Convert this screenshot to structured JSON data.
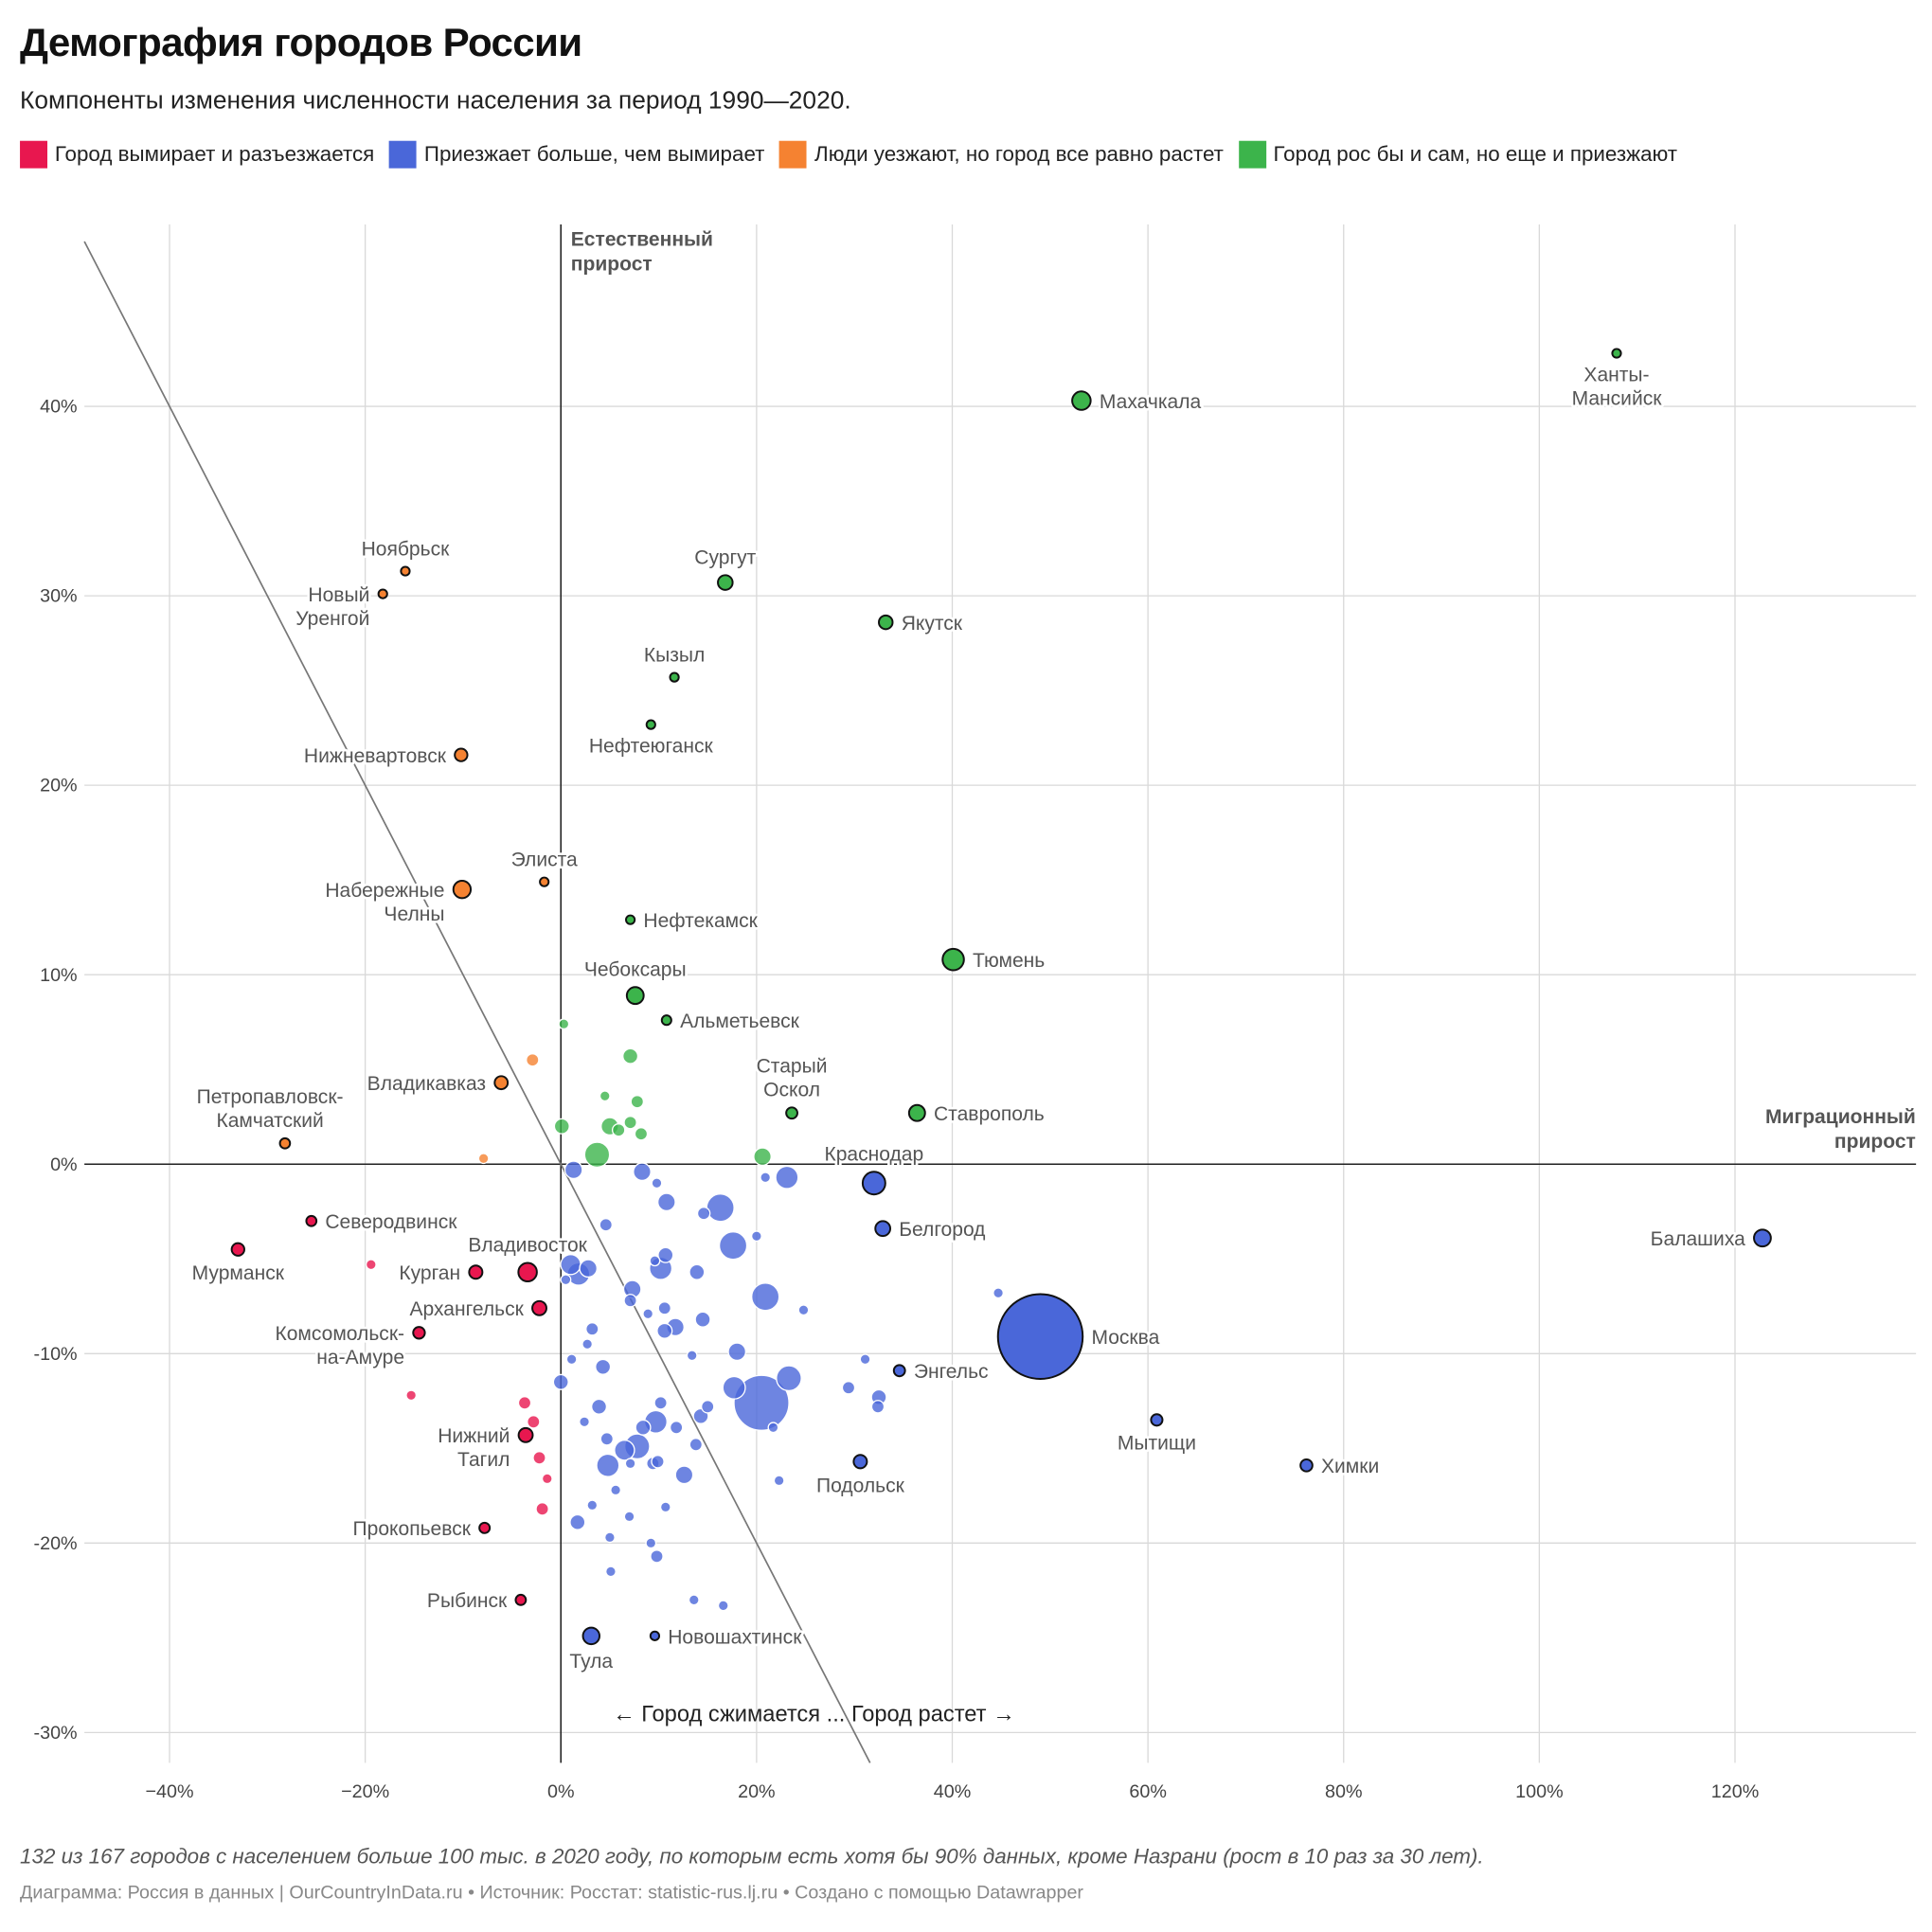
{
  "title": "Демография городов России",
  "subtitle": "Компоненты изменения численности населения за период 1990—2020.",
  "legend": [
    {
      "label": "Город вымирает и разъезжается",
      "color": "#e8174f"
    },
    {
      "label": "Приезжает больше, чем вымирает",
      "color": "#4a67d9"
    },
    {
      "label": "Люди уезжают, но город все равно растет",
      "color": "#f58231"
    },
    {
      "label": "Город рос бы и сам, но еще и приезжают",
      "color": "#3cb44b"
    }
  ],
  "note": "132 из 167 городов с населением больше 100 тыс. в 2020 году, по которым есть хотя бы 90% данных, кроме Назрани (рост в 10 раз за 30 лет).",
  "credits": "Диаграмма: Россия в данных | OurCountryInData.ru • Источник: Росстат: statistic-rus.lj.ru • Создано с помощью Datawrapper",
  "chart_data": {
    "type": "scatter",
    "xlabel": "Миграционный прирост",
    "ylabel": "Естественный прирост",
    "direction_annotation": "← Город сжимается ... Город растет →",
    "xlim": [
      -48.7,
      138.5
    ],
    "ylim": [
      -31.6,
      49.6
    ],
    "x_ticks": [
      -40,
      -20,
      0,
      20,
      40,
      60,
      80,
      100,
      120
    ],
    "x_tick_labels": [
      "−40%",
      "−20%",
      "0%",
      "20%",
      "40%",
      "60%",
      "80%",
      "100%",
      "120%"
    ],
    "y_ticks": [
      -30,
      -20,
      -10,
      0,
      10,
      20,
      30,
      40
    ],
    "y_tick_labels": [
      "-30%",
      "-20%",
      "-10%",
      "0%",
      "10%",
      "20%",
      "30%",
      "40%"
    ],
    "grid": true,
    "reference_line": "x + y = 0",
    "size_encoding": "population (thousands, estimated)",
    "categories": [
      "shrinking",
      "migration_growth",
      "natural_growth_only",
      "both_growth"
    ],
    "labeled_points": [
      {
        "name": "Ханты-\nМансийск",
        "x": 107.9,
        "y": 42.8,
        "pop": 100,
        "cat": 3,
        "label_pos": "below"
      },
      {
        "name": "Махачкала",
        "x": 53.2,
        "y": 40.3,
        "pop": 600,
        "cat": 3,
        "label_pos": "right"
      },
      {
        "name": "Сургут",
        "x": 16.8,
        "y": 30.7,
        "pop": 380,
        "cat": 3,
        "label_pos": "above"
      },
      {
        "name": "Якутск",
        "x": 33.2,
        "y": 28.6,
        "pop": 330,
        "cat": 3,
        "label_pos": "right"
      },
      {
        "name": "Кызыл",
        "x": 11.6,
        "y": 25.7,
        "pop": 120,
        "cat": 3,
        "label_pos": "above"
      },
      {
        "name": "Нефтеюганск",
        "x": 9.2,
        "y": 23.2,
        "pop": 125,
        "cat": 3,
        "label_pos": "below"
      },
      {
        "name": "Нефтекамск",
        "x": 7.1,
        "y": 12.9,
        "pop": 125,
        "cat": 3,
        "label_pos": "right"
      },
      {
        "name": "Тюмень",
        "x": 40.1,
        "y": 10.8,
        "pop": 800,
        "cat": 3,
        "label_pos": "right"
      },
      {
        "name": "Чебоксары",
        "x": 7.6,
        "y": 8.9,
        "pop": 500,
        "cat": 3,
        "label_pos": "above"
      },
      {
        "name": "Альметьевск",
        "x": 10.8,
        "y": 7.6,
        "pop": 160,
        "cat": 3,
        "label_pos": "right"
      },
      {
        "name": "Старый\nОскол",
        "x": 23.6,
        "y": 2.7,
        "pop": 220,
        "cat": 3,
        "label_pos": "above"
      },
      {
        "name": "Ставрополь",
        "x": 36.4,
        "y": 2.7,
        "pop": 450,
        "cat": 3,
        "label_pos": "right"
      },
      {
        "name": "Ноябрьск",
        "x": -15.9,
        "y": 31.3,
        "pop": 105,
        "cat": 2,
        "label_pos": "above"
      },
      {
        "name": "Новый\nУренгой",
        "x": -18.2,
        "y": 30.1,
        "pop": 115,
        "cat": 2,
        "label_pos": "left"
      },
      {
        "name": "Нижневартовск",
        "x": -10.2,
        "y": 21.6,
        "pop": 280,
        "cat": 2,
        "label_pos": "left"
      },
      {
        "name": "Набережные\nЧелны",
        "x": -10.1,
        "y": 14.5,
        "pop": 530,
        "cat": 2,
        "label_pos": "left"
      },
      {
        "name": "Элиста",
        "x": -1.7,
        "y": 14.9,
        "pop": 100,
        "cat": 2,
        "label_pos": "above"
      },
      {
        "name": "Владикавказ",
        "x": -6.1,
        "y": 4.3,
        "pop": 300,
        "cat": 2,
        "label_pos": "left"
      },
      {
        "name": "Петропавловск-\nКамчатский",
        "x": -28.2,
        "y": 1.1,
        "pop": 180,
        "cat": 2,
        "label_pos": "above"
      },
      {
        "name": "Краснодар",
        "x": 32.0,
        "y": -1.0,
        "pop": 900,
        "cat": 1,
        "label_pos": "above"
      },
      {
        "name": "Белгород",
        "x": 32.9,
        "y": -3.4,
        "pop": 390,
        "cat": 1,
        "label_pos": "right"
      },
      {
        "name": "Балашиха",
        "x": 122.8,
        "y": -3.9,
        "pop": 500,
        "cat": 1,
        "label_pos": "left"
      },
      {
        "name": "Москва",
        "x": 49.0,
        "y": -9.1,
        "pop": 12600,
        "cat": 1,
        "label_pos": "right"
      },
      {
        "name": "Энгельс",
        "x": 34.6,
        "y": -10.9,
        "pop": 220,
        "cat": 1,
        "label_pos": "right"
      },
      {
        "name": "Мытищи",
        "x": 60.9,
        "y": -13.5,
        "pop": 230,
        "cat": 1,
        "label_pos": "below"
      },
      {
        "name": "Химки",
        "x": 76.2,
        "y": -15.9,
        "pop": 250,
        "cat": 1,
        "label_pos": "right"
      },
      {
        "name": "Подольск",
        "x": 30.6,
        "y": -15.7,
        "pop": 310,
        "cat": 1,
        "label_pos": "below"
      },
      {
        "name": "Новошахтинск",
        "x": 9.6,
        "y": -24.9,
        "pop": 105,
        "cat": 1,
        "label_pos": "below"
      },
      {
        "name": "Тула",
        "x": 3.1,
        "y": -24.9,
        "pop": 480,
        "cat": 1,
        "label_pos": "below"
      },
      {
        "name": "Северодвинск",
        "x": -25.5,
        "y": -3.0,
        "pop": 180,
        "cat": 0,
        "label_pos": "right"
      },
      {
        "name": "Мурманск",
        "x": -33.0,
        "y": -4.5,
        "pop": 280,
        "cat": 0,
        "label_pos": "below"
      },
      {
        "name": "Курган",
        "x": -8.7,
        "y": -5.7,
        "pop": 310,
        "cat": 0,
        "label_pos": "left"
      },
      {
        "name": "Владивосток",
        "x": -3.4,
        "y": -5.7,
        "pop": 600,
        "cat": 0,
        "label_pos": "above"
      },
      {
        "name": "Архангельск",
        "x": -2.2,
        "y": -7.6,
        "pop": 350,
        "cat": 0,
        "label_pos": "left"
      },
      {
        "name": "Комсомольск-\nна-Амуре",
        "x": -14.5,
        "y": -8.9,
        "pop": 240,
        "cat": 0,
        "label_pos": "left"
      },
      {
        "name": "Нижний\nТагил",
        "x": -3.6,
        "y": -14.3,
        "pop": 350,
        "cat": 0,
        "label_pos": "left"
      },
      {
        "name": "Прокопьевск",
        "x": -7.8,
        "y": -19.2,
        "pop": 190,
        "cat": 0,
        "label_pos": "left"
      },
      {
        "name": "Рыбинск",
        "x": -4.1,
        "y": -23.0,
        "pop": 185,
        "cat": 0,
        "label_pos": "left"
      }
    ],
    "other_points": [
      [
        0.3,
        7.4,
        174,
        3
      ],
      [
        7.1,
        5.7,
        390,
        3
      ],
      [
        4.5,
        3.6,
        174,
        3
      ],
      [
        7.8,
        3.3,
        270,
        3
      ],
      [
        7.1,
        2.2,
        270,
        3
      ],
      [
        5.0,
        2.0,
        530,
        3
      ],
      [
        5.9,
        1.8,
        270,
        3
      ],
      [
        8.2,
        1.6,
        270,
        3
      ],
      [
        0.1,
        2.0,
        390,
        3
      ],
      [
        3.7,
        0.5,
        1090,
        3
      ],
      [
        20.6,
        0.4,
        530,
        3
      ],
      [
        -2.9,
        5.5,
        270,
        2
      ],
      [
        -7.9,
        0.3,
        174,
        2
      ],
      [
        -19.4,
        -5.3,
        174,
        0
      ],
      [
        -15.3,
        -12.2,
        174,
        0
      ],
      [
        -3.7,
        -12.6,
        270,
        0
      ],
      [
        -2.8,
        -13.6,
        270,
        0
      ],
      [
        -2.2,
        -15.5,
        270,
        0
      ],
      [
        -1.4,
        -16.6,
        174,
        0
      ],
      [
        -1.9,
        -18.2,
        270,
        0
      ],
      [
        1.3,
        -0.3,
        530,
        1
      ],
      [
        8.3,
        -0.4,
        530,
        1
      ],
      [
        9.8,
        -1.0,
        174,
        1
      ],
      [
        10.8,
        -2.0,
        530,
        1
      ],
      [
        16.3,
        -2.3,
        1320,
        1
      ],
      [
        14.6,
        -2.6,
        270,
        1
      ],
      [
        20.9,
        -0.7,
        174,
        1
      ],
      [
        23.1,
        -0.7,
        880,
        1
      ],
      [
        4.6,
        -3.2,
        270,
        1
      ],
      [
        20.0,
        -3.8,
        174,
        1
      ],
      [
        17.6,
        -4.3,
        1320,
        1
      ],
      [
        10.7,
        -4.8,
        390,
        1
      ],
      [
        9.6,
        -5.1,
        174,
        1
      ],
      [
        10.2,
        -5.5,
        880,
        1
      ],
      [
        1.0,
        -5.3,
        700,
        1
      ],
      [
        1.8,
        -5.8,
        880,
        1
      ],
      [
        2.8,
        -5.5,
        530,
        1
      ],
      [
        0.5,
        -6.1,
        174,
        1
      ],
      [
        13.9,
        -5.7,
        390,
        1
      ],
      [
        7.3,
        -6.6,
        530,
        1
      ],
      [
        7.1,
        -7.2,
        270,
        1
      ],
      [
        20.9,
        -7.0,
        1320,
        1
      ],
      [
        24.8,
        -7.7,
        174,
        1
      ],
      [
        44.7,
        -6.8,
        174,
        1
      ],
      [
        10.6,
        -7.6,
        270,
        1
      ],
      [
        8.9,
        -7.9,
        174,
        1
      ],
      [
        14.5,
        -8.2,
        390,
        1
      ],
      [
        11.7,
        -8.6,
        530,
        1
      ],
      [
        10.6,
        -8.8,
        390,
        1
      ],
      [
        3.2,
        -8.7,
        270,
        1
      ],
      [
        2.7,
        -9.5,
        174,
        1
      ],
      [
        18.0,
        -9.9,
        530,
        1
      ],
      [
        1.1,
        -10.3,
        174,
        1
      ],
      [
        13.4,
        -10.1,
        174,
        1
      ],
      [
        31.1,
        -10.3,
        174,
        1
      ],
      [
        4.3,
        -10.7,
        390,
        1
      ],
      [
        0.0,
        -11.5,
        390,
        1
      ],
      [
        23.3,
        -11.3,
        1090,
        1
      ],
      [
        17.7,
        -11.8,
        880,
        1
      ],
      [
        20.5,
        -12.6,
        5300,
        1
      ],
      [
        29.4,
        -11.8,
        270,
        1
      ],
      [
        32.5,
        -12.3,
        390,
        1
      ],
      [
        32.4,
        -12.8,
        270,
        1
      ],
      [
        10.2,
        -12.6,
        270,
        1
      ],
      [
        3.9,
        -12.8,
        390,
        1
      ],
      [
        2.4,
        -13.6,
        174,
        1
      ],
      [
        15.0,
        -12.8,
        270,
        1
      ],
      [
        14.3,
        -13.3,
        390,
        1
      ],
      [
        9.7,
        -13.6,
        880,
        1
      ],
      [
        8.4,
        -13.9,
        390,
        1
      ],
      [
        11.8,
        -13.9,
        270,
        1
      ],
      [
        21.7,
        -13.9,
        174,
        1
      ],
      [
        4.7,
        -14.5,
        270,
        1
      ],
      [
        13.8,
        -14.8,
        270,
        1
      ],
      [
        7.8,
        -14.9,
        1090,
        1
      ],
      [
        6.5,
        -15.1,
        700,
        1
      ],
      [
        4.8,
        -15.9,
        880,
        1
      ],
      [
        7.1,
        -15.8,
        174,
        1
      ],
      [
        9.4,
        -15.8,
        270,
        1
      ],
      [
        9.9,
        -15.7,
        270,
        1
      ],
      [
        12.6,
        -16.4,
        530,
        1
      ],
      [
        22.3,
        -16.7,
        174,
        1
      ],
      [
        5.6,
        -17.2,
        174,
        1
      ],
      [
        3.2,
        -18.0,
        174,
        1
      ],
      [
        10.7,
        -18.1,
        174,
        1
      ],
      [
        7.0,
        -18.6,
        174,
        1
      ],
      [
        1.7,
        -18.9,
        390,
        1
      ],
      [
        5.0,
        -19.7,
        174,
        1
      ],
      [
        9.2,
        -20.0,
        174,
        1
      ],
      [
        9.8,
        -20.7,
        270,
        1
      ],
      [
        5.1,
        -21.5,
        174,
        1
      ],
      [
        13.6,
        -23.0,
        174,
        1
      ],
      [
        16.6,
        -23.3,
        174,
        1
      ]
    ]
  }
}
